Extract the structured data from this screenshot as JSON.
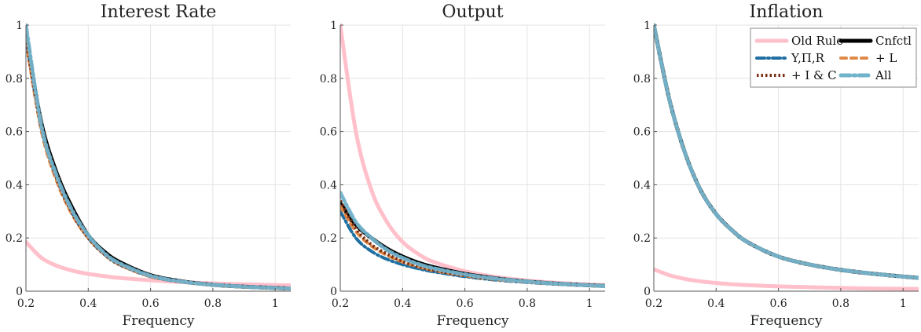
{
  "colors": {
    "old_rule": "#ffc0cb",
    "cnfctl": "#000000",
    "y_pi_r": "#1f6fa0",
    "l": "#e08a4a",
    "i_c": "#7a2e14",
    "all": "#72b3cc",
    "grid": "#e3e3e3",
    "axis": "#555555"
  },
  "legend": {
    "entries": [
      {
        "key": "old_rule",
        "label": "Old Rule",
        "style": "solid"
      },
      {
        "key": "cnfctl",
        "label": "Cnfctl",
        "style": "solid"
      },
      {
        "key": "y_pi_r",
        "label": "Y,Π,R",
        "style": "dashdot"
      },
      {
        "key": "l",
        "label": "+ L",
        "style": "dashed"
      },
      {
        "key": "i_c",
        "label": "+ I & C",
        "style": "dotted"
      },
      {
        "key": "all",
        "label": "All",
        "style": "dashdot"
      }
    ]
  },
  "chart_data": [
    {
      "type": "line",
      "title": "Interest Rate",
      "xlabel": "Frequency",
      "ylabel": "",
      "xlim": [
        0.2,
        1.05
      ],
      "ylim": [
        0,
        1
      ],
      "xticks": [
        "0.2",
        "0.4",
        "0.6",
        "0.8",
        "1"
      ],
      "yticks": [
        "0",
        "0.2",
        "0.4",
        "0.6",
        "0.8",
        "1"
      ],
      "grid": true,
      "x": [
        0.2,
        0.25,
        0.3,
        0.35,
        0.4,
        0.45,
        0.5,
        0.6,
        0.7,
        0.8,
        0.9,
        1.0,
        1.05
      ],
      "series": [
        {
          "key": "old_rule",
          "values": [
            0.185,
            0.125,
            0.095,
            0.077,
            0.065,
            0.057,
            0.05,
            0.041,
            0.034,
            0.029,
            0.026,
            0.023,
            0.022
          ]
        },
        {
          "key": "cnfctl",
          "values": [
            0.96,
            0.63,
            0.44,
            0.31,
            0.21,
            0.15,
            0.11,
            0.06,
            0.037,
            0.024,
            0.017,
            0.012,
            0.01
          ]
        },
        {
          "key": "y_pi_r",
          "values": [
            0.95,
            0.61,
            0.42,
            0.29,
            0.2,
            0.14,
            0.1,
            0.055,
            0.035,
            0.023,
            0.016,
            0.011,
            0.01
          ]
        },
        {
          "key": "l",
          "values": [
            0.94,
            0.6,
            0.41,
            0.285,
            0.2,
            0.14,
            0.1,
            0.055,
            0.035,
            0.023,
            0.016,
            0.011,
            0.01
          ]
        },
        {
          "key": "i_c",
          "values": [
            0.95,
            0.61,
            0.42,
            0.29,
            0.2,
            0.14,
            0.1,
            0.056,
            0.035,
            0.023,
            0.016,
            0.011,
            0.01
          ]
        },
        {
          "key": "all",
          "values": [
            1.0,
            0.62,
            0.43,
            0.3,
            0.21,
            0.145,
            0.105,
            0.058,
            0.036,
            0.024,
            0.017,
            0.012,
            0.01
          ]
        }
      ]
    },
    {
      "type": "line",
      "title": "Output",
      "xlabel": "Frequency",
      "ylabel": "",
      "xlim": [
        0.2,
        1.05
      ],
      "ylim": [
        0,
        1
      ],
      "xticks": [
        "0.2",
        "0.4",
        "0.6",
        "0.8",
        "1"
      ],
      "yticks": [
        "0",
        "0.2",
        "0.4",
        "0.6",
        "0.8",
        "1"
      ],
      "grid": true,
      "x": [
        0.2,
        0.25,
        0.3,
        0.35,
        0.4,
        0.45,
        0.5,
        0.6,
        0.7,
        0.8,
        0.9,
        1.0,
        1.05
      ],
      "series": [
        {
          "key": "old_rule",
          "values": [
            1.0,
            0.6,
            0.38,
            0.26,
            0.185,
            0.14,
            0.11,
            0.075,
            0.053,
            0.04,
            0.031,
            0.025,
            0.022
          ]
        },
        {
          "key": "cnfctl",
          "values": [
            0.33,
            0.25,
            0.2,
            0.16,
            0.13,
            0.107,
            0.09,
            0.065,
            0.048,
            0.036,
            0.028,
            0.022,
            0.02
          ]
        },
        {
          "key": "y_pi_r",
          "values": [
            0.3,
            0.2,
            0.15,
            0.12,
            0.1,
            0.085,
            0.073,
            0.055,
            0.042,
            0.033,
            0.026,
            0.021,
            0.019
          ]
        },
        {
          "key": "l",
          "values": [
            0.32,
            0.225,
            0.17,
            0.135,
            0.11,
            0.092,
            0.078,
            0.058,
            0.044,
            0.034,
            0.027,
            0.021,
            0.019
          ]
        },
        {
          "key": "i_c",
          "values": [
            0.34,
            0.235,
            0.175,
            0.14,
            0.112,
            0.093,
            0.079,
            0.059,
            0.045,
            0.035,
            0.027,
            0.022,
            0.019
          ]
        },
        {
          "key": "all",
          "values": [
            0.37,
            0.26,
            0.2,
            0.155,
            0.125,
            0.102,
            0.086,
            0.063,
            0.047,
            0.036,
            0.028,
            0.022,
            0.019
          ]
        }
      ]
    },
    {
      "type": "line",
      "title": "Inflation",
      "xlabel": "Frequency",
      "ylabel": "",
      "xlim": [
        0.2,
        1.05
      ],
      "ylim": [
        0,
        1
      ],
      "xticks": [
        "0.2",
        "0.4",
        "0.6",
        "0.8",
        "1"
      ],
      "yticks": [
        "0",
        "0.2",
        "0.4",
        "0.6",
        "0.8",
        "1"
      ],
      "grid": true,
      "x": [
        0.2,
        0.25,
        0.3,
        0.35,
        0.4,
        0.45,
        0.5,
        0.6,
        0.7,
        0.8,
        0.9,
        1.0,
        1.05
      ],
      "series": [
        {
          "key": "old_rule",
          "values": [
            0.082,
            0.06,
            0.046,
            0.037,
            0.031,
            0.026,
            0.023,
            0.018,
            0.015,
            0.012,
            0.01,
            0.009,
            0.008
          ]
        },
        {
          "key": "cnfctl",
          "values": [
            1.0,
            0.72,
            0.52,
            0.38,
            0.29,
            0.23,
            0.185,
            0.13,
            0.1,
            0.08,
            0.066,
            0.055,
            0.05
          ]
        },
        {
          "key": "y_pi_r",
          "values": [
            1.0,
            0.72,
            0.52,
            0.38,
            0.29,
            0.23,
            0.185,
            0.13,
            0.1,
            0.08,
            0.066,
            0.055,
            0.05
          ]
        },
        {
          "key": "l",
          "values": [
            1.0,
            0.72,
            0.52,
            0.38,
            0.29,
            0.23,
            0.185,
            0.13,
            0.1,
            0.08,
            0.066,
            0.055,
            0.05
          ]
        },
        {
          "key": "i_c",
          "values": [
            1.0,
            0.72,
            0.52,
            0.38,
            0.29,
            0.23,
            0.185,
            0.13,
            0.1,
            0.08,
            0.066,
            0.055,
            0.05
          ]
        },
        {
          "key": "all",
          "values": [
            1.0,
            0.72,
            0.52,
            0.38,
            0.29,
            0.23,
            0.185,
            0.13,
            0.1,
            0.08,
            0.066,
            0.055,
            0.05
          ]
        }
      ]
    }
  ]
}
